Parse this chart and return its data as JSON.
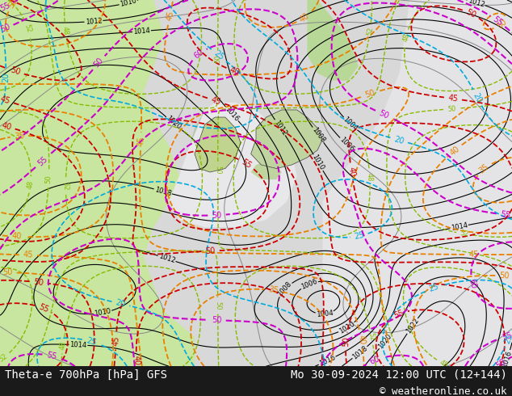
{
  "title_left": "Theta-e 700hPa [hPa] GFS",
  "title_right": "Mo 30-09-2024 12:00 UTC (12+144)",
  "copyright": "© weatheronline.co.uk",
  "bottom_bar_color": "#1a1a1a",
  "font_size_title": 10,
  "font_size_copyright": 9,
  "fig_width": 6.34,
  "fig_height": 4.9,
  "dpi": 100,
  "bg_land_green": "#c8e6a0",
  "bg_sea_light": "#e0e0e0",
  "bg_sea_white": "#f0f0f2"
}
